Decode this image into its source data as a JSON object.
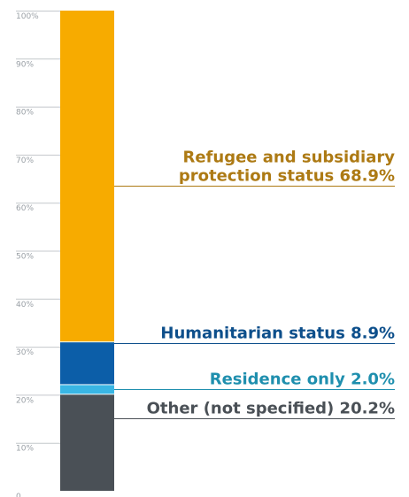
{
  "chart_data": {
    "type": "bar",
    "stacked": true,
    "ylim": [
      0,
      100
    ],
    "y_ticks": [
      {
        "value": 0,
        "label": "0"
      },
      {
        "value": 10,
        "label": "10%"
      },
      {
        "value": 20,
        "label": "20%"
      },
      {
        "value": 30,
        "label": "30%"
      },
      {
        "value": 40,
        "label": "40%"
      },
      {
        "value": 50,
        "label": "50%"
      },
      {
        "value": 60,
        "label": "60%"
      },
      {
        "value": 70,
        "label": "70%"
      },
      {
        "value": 80,
        "label": "80%"
      },
      {
        "value": 90,
        "label": "90%"
      },
      {
        "value": 100,
        "label": "100%"
      }
    ],
    "grid": true,
    "segments": [
      {
        "key": "other",
        "value": 20.2,
        "color": "#4a5056",
        "text_color": "#4a5056",
        "label_lines": [
          "Other (not specified) 20.2%"
        ]
      },
      {
        "key": "residence",
        "value": 2.0,
        "color": "#39b6e4",
        "text_color": "#1f8fae",
        "label_lines": [
          "Residence only 2.0%"
        ]
      },
      {
        "key": "humanitarian",
        "value": 8.9,
        "color": "#0c5ea8",
        "text_color": "#0d4f8b",
        "label_lines": [
          "Humanitarian status 8.9%"
        ]
      },
      {
        "key": "refugee",
        "value": 68.9,
        "color": "#f7ab00",
        "text_color": "#ad7a14",
        "label_lines": [
          "Refugee and subsidiary",
          "protection status 68.9%"
        ]
      }
    ]
  }
}
